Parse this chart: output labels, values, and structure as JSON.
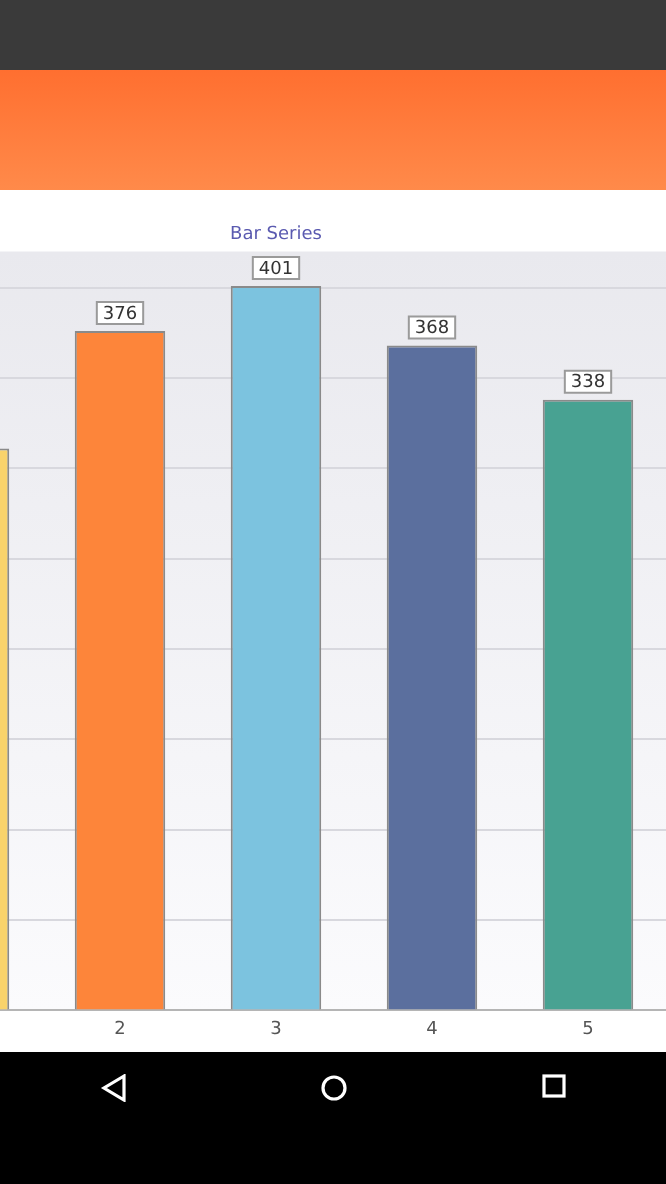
{
  "chart_data": {
    "type": "bar",
    "title": "Bar Series",
    "categories": [
      null,
      "2",
      "3",
      "4",
      "5"
    ],
    "values": [
      311,
      376,
      401,
      368,
      338
    ],
    "value_labels": [
      null,
      "376",
      "401",
      "368",
      "338"
    ],
    "colors": [
      "#f9d36b",
      "#fd853a",
      "#7cc3df",
      "#5b6f9e",
      "#48a292"
    ],
    "ylim": [
      0,
      420
    ],
    "yticks": [
      0,
      50,
      100,
      150,
      200,
      250,
      300,
      350,
      400
    ],
    "tick_labels": "x",
    "grid": "y",
    "legend": false
  }
}
